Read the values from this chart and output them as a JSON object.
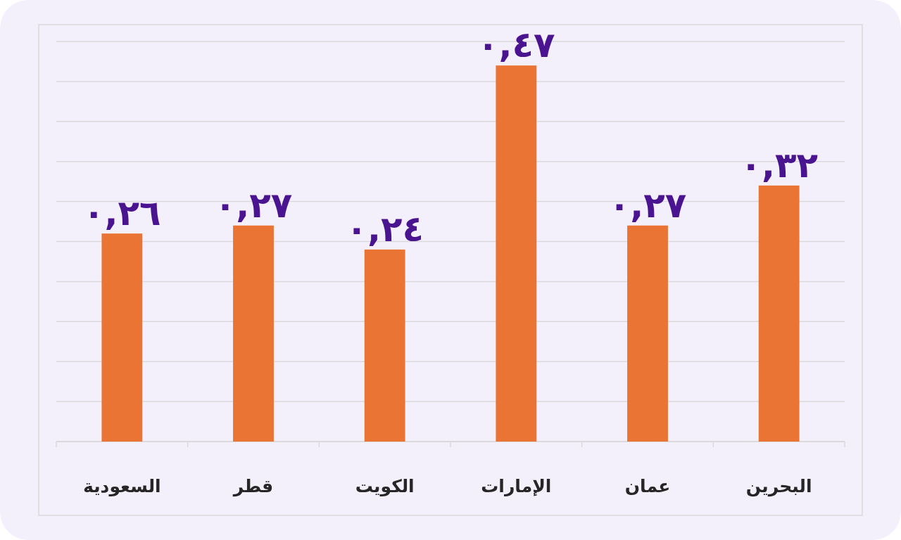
{
  "chart_data": {
    "type": "bar",
    "categories": [
      "السعودية",
      "قطر",
      "الكويت",
      "الإمارات",
      "عمان",
      "البحرين"
    ],
    "values": [
      0.26,
      0.27,
      0.24,
      0.47,
      0.27,
      0.32
    ],
    "value_labels": [
      "٠,٢٦",
      "٠,٢٧",
      "٠,٢٤",
      "٠,٤٧",
      "٠,٢٧",
      "٠,٣٢"
    ],
    "color": "#ea7434",
    "ylim": [
      0,
      0.5
    ],
    "yticks": [
      {
        "value": 0,
        "label": null
      },
      {
        "value": 0.05,
        "label": null
      },
      {
        "value": 0.1,
        "label": null
      },
      {
        "value": 0.15,
        "label": null
      },
      {
        "value": 0.2,
        "label": null
      },
      {
        "value": 0.25,
        "label": null
      },
      {
        "value": 0.3,
        "label": null
      },
      {
        "value": 0.35,
        "label": null
      },
      {
        "value": 0.4,
        "label": null
      },
      {
        "value": 0.45,
        "label": null
      },
      {
        "value": 0.5,
        "label": null
      }
    ],
    "grid": "y",
    "tick_labels": "x"
  }
}
